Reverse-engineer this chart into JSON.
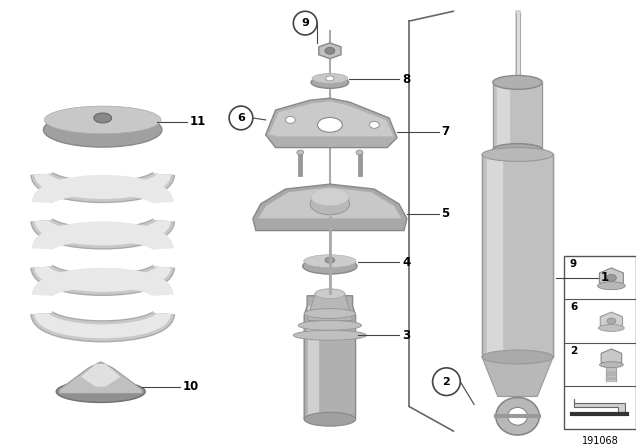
{
  "bg_color": "#ffffff",
  "part_number": "191068",
  "lc": "#444444",
  "part_gray": "#b8b8b8",
  "part_light": "#d8d8d8",
  "part_dark": "#909090"
}
